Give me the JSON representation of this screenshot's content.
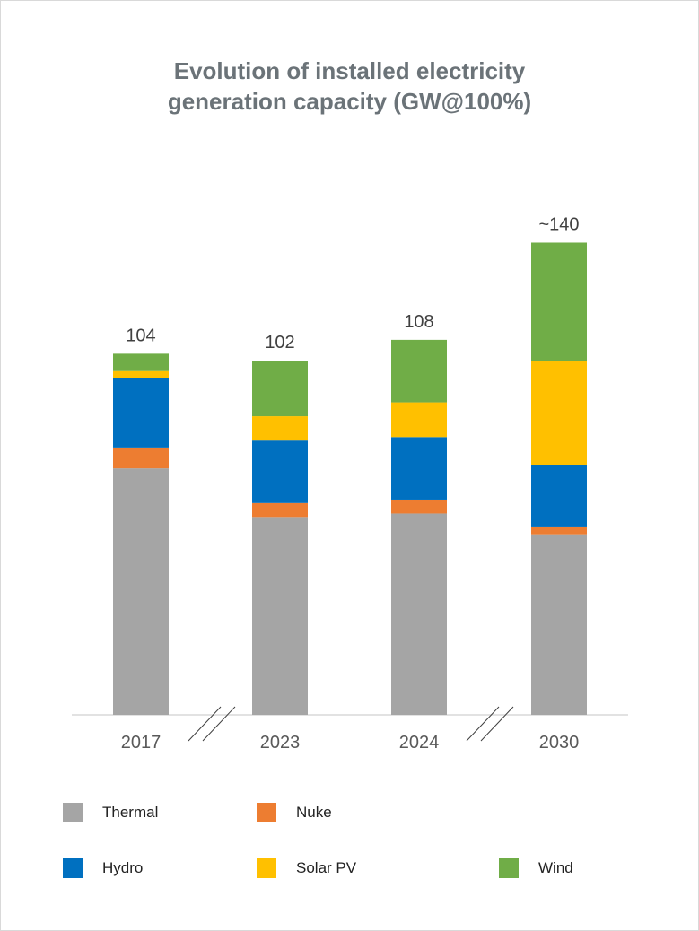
{
  "chart_data": {
    "type": "bar",
    "stacked": true,
    "title": "Evolution of installed electricity generation capacity (GW@100%)",
    "title_lines": [
      "Evolution of installed electricity",
      "generation capacity (GW@100%)"
    ],
    "categories": [
      "2017",
      "2023",
      "2024",
      "2030"
    ],
    "totals": [
      "104",
      "102",
      "108",
      "~140"
    ],
    "axis_breaks": [
      "//",
      "//"
    ],
    "series": [
      {
        "name": "Thermal",
        "color": "#a5a5a5",
        "values": [
          71,
          57,
          58,
          52
        ]
      },
      {
        "name": "Nuke",
        "color": "#ed7d31",
        "values": [
          6,
          4,
          4,
          2
        ]
      },
      {
        "name": "Hydro",
        "color": "#0070c0",
        "values": [
          20,
          18,
          18,
          18
        ]
      },
      {
        "name": "Solar PV",
        "color": "#ffc000",
        "values": [
          2,
          7,
          10,
          30
        ]
      },
      {
        "name": "Wind",
        "color": "#70ad47",
        "values": [
          5,
          16,
          18,
          34
        ]
      }
    ],
    "ylim": [
      0,
      140
    ],
    "grid": false,
    "legend_position": "bottom"
  }
}
